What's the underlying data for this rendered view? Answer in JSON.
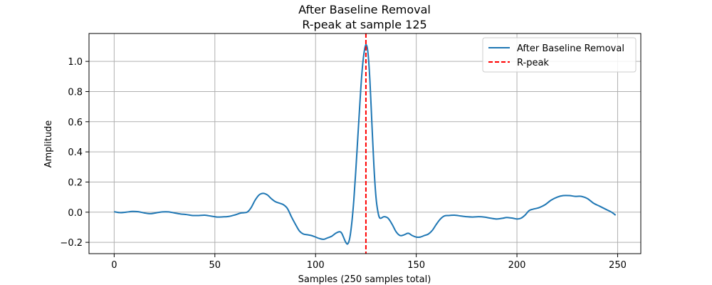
{
  "chart_data": {
    "type": "line",
    "title": "After Baseline Removal",
    "subtitle": "R-peak at sample 125",
    "xlabel": "Samples (250 samples total)",
    "ylabel": "Amplitude",
    "xlim": [
      -12.5,
      261.5
    ],
    "ylim": [
      -0.275,
      1.185
    ],
    "xticks": [
      0,
      50,
      100,
      150,
      200,
      250
    ],
    "yticks": [
      -0.2,
      0.0,
      0.2,
      0.4,
      0.6,
      0.8,
      1.0
    ],
    "xtick_labels": [
      "0",
      "50",
      "100",
      "150",
      "200",
      "250"
    ],
    "ytick_labels": [
      "−0.2",
      "0.0",
      "0.2",
      "0.4",
      "0.6",
      "0.8",
      "1.0"
    ],
    "grid": true,
    "legend_position": "top-right",
    "series": [
      {
        "name": "After Baseline Removal",
        "color": "#1f77b4",
        "style": "solid",
        "points": [
          [
            0,
            0.003
          ],
          [
            3,
            -0.003
          ],
          [
            6,
            0.0
          ],
          [
            9,
            0.005
          ],
          [
            12,
            0.003
          ],
          [
            15,
            -0.005
          ],
          [
            18,
            -0.01
          ],
          [
            21,
            -0.004
          ],
          [
            24,
            0.002
          ],
          [
            27,
            0.002
          ],
          [
            30,
            -0.005
          ],
          [
            33,
            -0.012
          ],
          [
            36,
            -0.016
          ],
          [
            39,
            -0.022
          ],
          [
            42,
            -0.022
          ],
          [
            45,
            -0.02
          ],
          [
            48,
            -0.026
          ],
          [
            51,
            -0.032
          ],
          [
            54,
            -0.031
          ],
          [
            57,
            -0.028
          ],
          [
            60,
            -0.018
          ],
          [
            63,
            -0.005
          ],
          [
            66,
            0.0
          ],
          [
            68,
            0.03
          ],
          [
            70,
            0.08
          ],
          [
            72,
            0.115
          ],
          [
            74,
            0.125
          ],
          [
            76,
            0.115
          ],
          [
            78,
            0.09
          ],
          [
            80,
            0.07
          ],
          [
            82,
            0.06
          ],
          [
            84,
            0.05
          ],
          [
            86,
            0.025
          ],
          [
            88,
            -0.03
          ],
          [
            90,
            -0.08
          ],
          [
            92,
            -0.125
          ],
          [
            94,
            -0.145
          ],
          [
            96,
            -0.15
          ],
          [
            98,
            -0.155
          ],
          [
            100,
            -0.165
          ],
          [
            102,
            -0.175
          ],
          [
            104,
            -0.18
          ],
          [
            106,
            -0.17
          ],
          [
            108,
            -0.16
          ],
          [
            110,
            -0.14
          ],
          [
            112,
            -0.13
          ],
          [
            113,
            -0.14
          ],
          [
            114,
            -0.17
          ],
          [
            115,
            -0.2
          ],
          [
            116,
            -0.21
          ],
          [
            117,
            -0.17
          ],
          [
            118,
            -0.07
          ],
          [
            119,
            0.08
          ],
          [
            120,
            0.28
          ],
          [
            121,
            0.5
          ],
          [
            122,
            0.72
          ],
          [
            123,
            0.92
          ],
          [
            124,
            1.05
          ],
          [
            125,
            1.11
          ],
          [
            126,
            1.06
          ],
          [
            127,
            0.87
          ],
          [
            128,
            0.58
          ],
          [
            129,
            0.3
          ],
          [
            130,
            0.1
          ],
          [
            131,
            0.0
          ],
          [
            132,
            -0.04
          ],
          [
            134,
            -0.03
          ],
          [
            136,
            -0.04
          ],
          [
            138,
            -0.08
          ],
          [
            140,
            -0.13
          ],
          [
            142,
            -0.155
          ],
          [
            144,
            -0.15
          ],
          [
            146,
            -0.14
          ],
          [
            148,
            -0.155
          ],
          [
            150,
            -0.165
          ],
          [
            152,
            -0.165
          ],
          [
            154,
            -0.155
          ],
          [
            156,
            -0.145
          ],
          [
            158,
            -0.12
          ],
          [
            160,
            -0.08
          ],
          [
            162,
            -0.045
          ],
          [
            164,
            -0.025
          ],
          [
            166,
            -0.022
          ],
          [
            169,
            -0.02
          ],
          [
            172,
            -0.025
          ],
          [
            175,
            -0.03
          ],
          [
            178,
            -0.032
          ],
          [
            181,
            -0.03
          ],
          [
            184,
            -0.033
          ],
          [
            187,
            -0.04
          ],
          [
            190,
            -0.045
          ],
          [
            193,
            -0.04
          ],
          [
            195,
            -0.035
          ],
          [
            198,
            -0.04
          ],
          [
            200,
            -0.045
          ],
          [
            202,
            -0.04
          ],
          [
            204,
            -0.02
          ],
          [
            206,
            0.01
          ],
          [
            208,
            0.02
          ],
          [
            211,
            0.03
          ],
          [
            214,
            0.05
          ],
          [
            217,
            0.08
          ],
          [
            220,
            0.1
          ],
          [
            223,
            0.11
          ],
          [
            226,
            0.11
          ],
          [
            229,
            0.105
          ],
          [
            232,
            0.105
          ],
          [
            235,
            0.09
          ],
          [
            238,
            0.06
          ],
          [
            241,
            0.04
          ],
          [
            244,
            0.02
          ],
          [
            247,
            0.0
          ],
          [
            249,
            -0.02
          ]
        ]
      },
      {
        "name": "R-peak",
        "color": "#ff0000",
        "style": "dashed",
        "vertical_x": 125
      }
    ]
  }
}
